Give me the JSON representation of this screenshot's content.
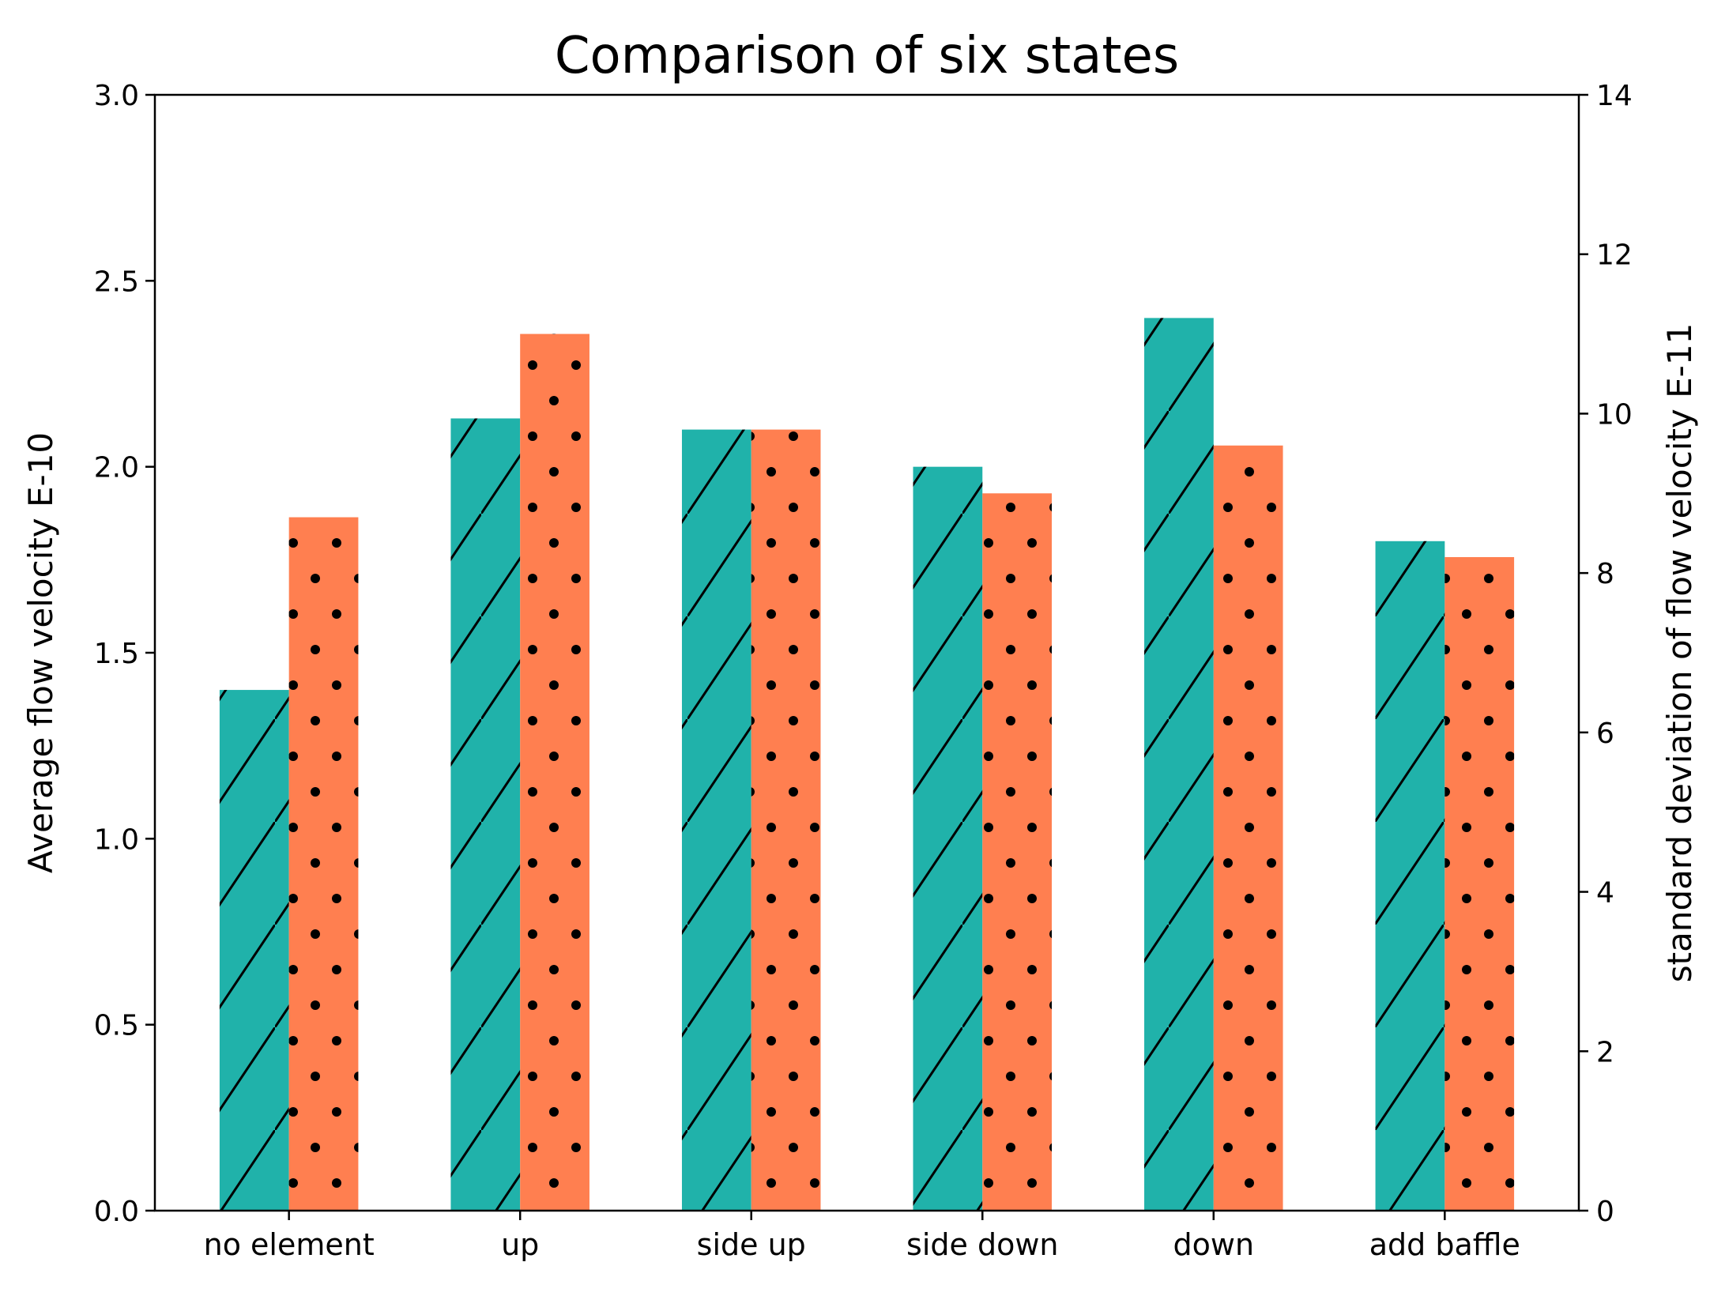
{
  "chart_data": {
    "type": "bar",
    "title": "Comparison of six states",
    "categories": [
      "no element",
      "up",
      "side up",
      "side down",
      "down",
      "add baffle"
    ],
    "ylabel": "Average flow velocity E-10",
    "y2label": "standard deviation of flow velocity E-11",
    "ylim": [
      0,
      3.0
    ],
    "y2lim": [
      0,
      14
    ],
    "yticks": [
      "0.0",
      "0.5",
      "1.0",
      "1.5",
      "2.0",
      "2.5",
      "3.0"
    ],
    "y2ticks": [
      "0",
      "2",
      "4",
      "6",
      "8",
      "10",
      "12",
      "14"
    ],
    "grid": false,
    "series": [
      {
        "axis": "left",
        "color": "#20b2aa",
        "hatch": "diagonal",
        "values": [
          1.4,
          2.13,
          2.1,
          2.0,
          2.4,
          1.8
        ]
      },
      {
        "axis": "right",
        "color": "#ff7f50",
        "hatch": "dots",
        "values": [
          8.7,
          11.0,
          9.8,
          9.0,
          9.6,
          8.2
        ]
      }
    ]
  }
}
